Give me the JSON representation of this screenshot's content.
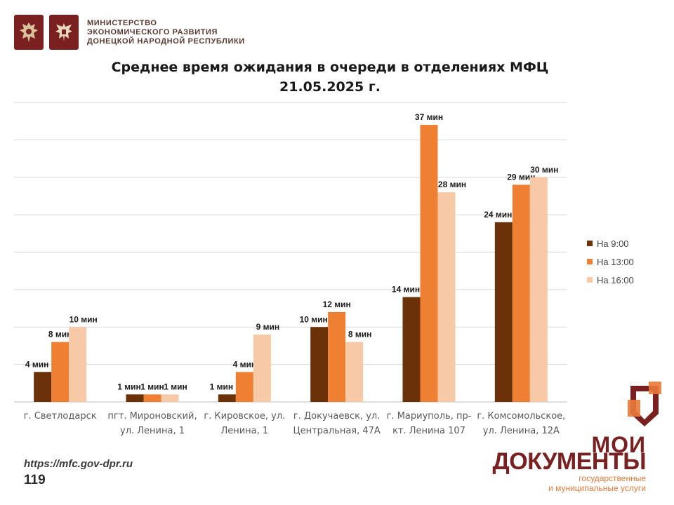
{
  "header": {
    "ministry_lines": [
      "МИНИСТЕРСТВО",
      "ЭКОНОМИЧЕСКОГО РАЗВИТИЯ",
      "ДОНЕЦКОЙ НАРОДНОЙ РЕСПУБЛИКИ"
    ]
  },
  "chart_data": {
    "type": "bar",
    "title": "Среднее время ожидания в очереди в отделениях МФЦ",
    "subtitle": "21.05.2025 г.",
    "categories": [
      [
        "г. Светлодарск"
      ],
      [
        "пгт. Мироновский,",
        "ул. Ленина, 1"
      ],
      [
        "г. Кировское, ул.",
        "Ленина, 1"
      ],
      [
        "г. Докучаевск, ул.",
        "Центральная, 47А"
      ],
      [
        "г. Мариуполь, пр-",
        "кт. Ленина 107"
      ],
      [
        "г. Комсомольское,",
        "ул. Ленина, 12А"
      ]
    ],
    "series": [
      {
        "name": "На 9:00",
        "color": "#6b3108",
        "values": [
          4,
          1,
          1,
          10,
          14,
          24
        ],
        "labels": [
          "4 мин",
          "1 мин",
          "1 мин",
          "10 мин",
          "14 мин",
          "24 мин"
        ]
      },
      {
        "name": "На 13:00",
        "color": "#ee7f33",
        "values": [
          8,
          1,
          4,
          12,
          37,
          29
        ],
        "labels": [
          "8 мин",
          "1 мин",
          "4 мин",
          "12 мин",
          "37 мин",
          "29 мин"
        ]
      },
      {
        "name": "На 16:00",
        "color": "#f8c9a6",
        "values": [
          10,
          1,
          9,
          8,
          28,
          30
        ],
        "labels": [
          "10 мин",
          "1 мин",
          "9 мин",
          "8 мин",
          "28 мин",
          "30 мин"
        ]
      }
    ],
    "ylim": [
      0,
      40
    ],
    "grid": true,
    "legend": "right"
  },
  "footer": {
    "url": "https://mfc.gov-dpr.ru",
    "page_number": "119"
  },
  "brand": {
    "word1": "МОИ",
    "word2": "ДОКУМЕНТЫ",
    "sub1": "государственные",
    "sub2": "и муниципальные услуги"
  }
}
